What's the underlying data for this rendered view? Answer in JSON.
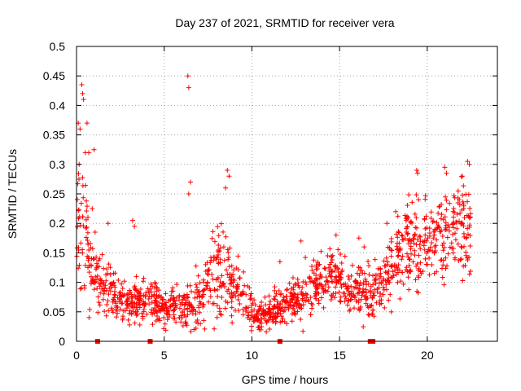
{
  "chart_data": {
    "type": "scatter",
    "title": "Day 237 of 2021, SRMTID for receiver vera",
    "xlabel": "GPS time / hours",
    "ylabel": "SRMTID / TECUs",
    "xlim": [
      0,
      24
    ],
    "ylim": [
      0,
      0.5
    ],
    "xticks": [
      0,
      5,
      10,
      15,
      20
    ],
    "xtick_labels": [
      "0",
      "5",
      "10",
      "15",
      "20"
    ],
    "yticks": [
      0,
      0.05,
      0.1,
      0.15,
      0.2,
      0.25,
      0.3,
      0.35,
      0.4,
      0.45,
      0.5
    ],
    "ytick_labels": [
      "0",
      "0.05",
      "0.1",
      "0.15",
      "0.2",
      "0.25",
      "0.3",
      "0.35",
      "0.4",
      "0.45",
      "0.5"
    ],
    "grid": true,
    "marker": "plus",
    "color": "#ff0000",
    "data_gap_markers_hours": [
      1.2,
      4.2,
      11.6,
      16.75,
      16.9
    ],
    "envelope": {
      "hours": [
        0,
        0.5,
        1,
        1.5,
        2,
        2.5,
        3,
        3.5,
        4,
        4.5,
        5,
        5.5,
        6,
        6.5,
        7,
        7.5,
        8,
        8.5,
        9,
        9.5,
        10,
        10.5,
        11,
        11.5,
        12,
        12.5,
        13,
        13.5,
        14,
        14.5,
        15,
        15.5,
        16,
        16.5,
        17,
        17.5,
        18,
        18.5,
        19,
        19.5,
        20,
        20.5,
        21,
        21.5,
        22,
        22.5
      ],
      "center": [
        0.2,
        0.17,
        0.12,
        0.1,
        0.08,
        0.07,
        0.065,
        0.07,
        0.07,
        0.065,
        0.06,
        0.06,
        0.06,
        0.065,
        0.07,
        0.09,
        0.12,
        0.13,
        0.09,
        0.08,
        0.045,
        0.04,
        0.05,
        0.06,
        0.065,
        0.07,
        0.08,
        0.09,
        0.11,
        0.11,
        0.1,
        0.09,
        0.085,
        0.09,
        0.085,
        0.1,
        0.13,
        0.15,
        0.16,
        0.17,
        0.18,
        0.17,
        0.17,
        0.18,
        0.19,
        0.2
      ],
      "spread": [
        0.07,
        0.06,
        0.04,
        0.03,
        0.025,
        0.02,
        0.02,
        0.025,
        0.025,
        0.02,
        0.02,
        0.02,
        0.02,
        0.03,
        0.025,
        0.04,
        0.05,
        0.05,
        0.03,
        0.025,
        0.02,
        0.015,
        0.02,
        0.02,
        0.02,
        0.025,
        0.03,
        0.03,
        0.03,
        0.025,
        0.025,
        0.025,
        0.025,
        0.03,
        0.025,
        0.03,
        0.04,
        0.04,
        0.05,
        0.05,
        0.05,
        0.04,
        0.04,
        0.045,
        0.05,
        0.05
      ]
    },
    "outliers": [
      {
        "x": 0.1,
        "y": 0.37
      },
      {
        "x": 0.2,
        "y": 0.36
      },
      {
        "x": 0.3,
        "y": 0.435
      },
      {
        "x": 0.35,
        "y": 0.42
      },
      {
        "x": 0.4,
        "y": 0.41
      },
      {
        "x": 0.6,
        "y": 0.37
      },
      {
        "x": 0.5,
        "y": 0.32
      },
      {
        "x": 0.7,
        "y": 0.32
      },
      {
        "x": 1.0,
        "y": 0.325
      },
      {
        "x": 0.15,
        "y": 0.3
      },
      {
        "x": 6.35,
        "y": 0.45
      },
      {
        "x": 6.4,
        "y": 0.43
      },
      {
        "x": 6.5,
        "y": 0.27
      },
      {
        "x": 6.4,
        "y": 0.25
      },
      {
        "x": 8.6,
        "y": 0.29
      },
      {
        "x": 8.7,
        "y": 0.28
      },
      {
        "x": 8.5,
        "y": 0.26
      },
      {
        "x": 19.4,
        "y": 0.29
      },
      {
        "x": 19.45,
        "y": 0.285
      },
      {
        "x": 21.0,
        "y": 0.295
      },
      {
        "x": 21.1,
        "y": 0.285
      },
      {
        "x": 22.3,
        "y": 0.305
      },
      {
        "x": 22.4,
        "y": 0.3
      },
      {
        "x": 22.0,
        "y": 0.28
      },
      {
        "x": 3.2,
        "y": 0.205
      },
      {
        "x": 1.8,
        "y": 0.2
      },
      {
        "x": 3.3,
        "y": 0.195
      },
      {
        "x": 11.6,
        "y": 0.135
      },
      {
        "x": 12.8,
        "y": 0.17
      },
      {
        "x": 14.8,
        "y": 0.18
      },
      {
        "x": 16.1,
        "y": 0.175
      },
      {
        "x": 16.4,
        "y": 0.16
      },
      {
        "x": 18.2,
        "y": 0.22
      },
      {
        "x": 17.7,
        "y": 0.2
      }
    ]
  }
}
